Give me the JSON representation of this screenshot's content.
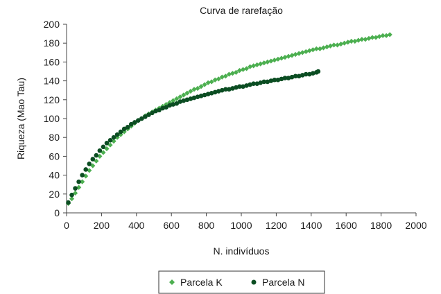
{
  "chart_data": {
    "type": "scatter",
    "title": "Curva de rarefação",
    "xlabel": "N. indivíduos",
    "ylabel": "Riqueza (Mao Tau)",
    "xlim": [
      0,
      2000
    ],
    "ylim": [
      0,
      200
    ],
    "xticks": [
      0,
      200,
      400,
      600,
      800,
      1000,
      1200,
      1400,
      1600,
      1800,
      2000
    ],
    "yticks": [
      0,
      20,
      40,
      60,
      80,
      100,
      120,
      140,
      160,
      180,
      200
    ],
    "grid": false,
    "legend_position": "bottom",
    "series": [
      {
        "name": "Parcela K",
        "marker": "diamond",
        "color": "#4caf50",
        "x": [
          10,
          30,
          50,
          70,
          90,
          110,
          130,
          150,
          170,
          190,
          210,
          230,
          250,
          270,
          290,
          310,
          330,
          350,
          370,
          390,
          410,
          430,
          450,
          470,
          490,
          510,
          530,
          550,
          570,
          590,
          610,
          630,
          650,
          670,
          690,
          710,
          730,
          750,
          770,
          790,
          810,
          830,
          850,
          870,
          890,
          910,
          930,
          950,
          970,
          990,
          1010,
          1030,
          1050,
          1070,
          1090,
          1110,
          1130,
          1150,
          1170,
          1190,
          1210,
          1230,
          1250,
          1270,
          1290,
          1310,
          1330,
          1350,
          1370,
          1390,
          1410,
          1430,
          1450,
          1470,
          1490,
          1510,
          1530,
          1550,
          1570,
          1590,
          1610,
          1630,
          1650,
          1670,
          1690,
          1710,
          1730,
          1750,
          1770,
          1790,
          1810,
          1830,
          1850
        ],
        "y": [
          10,
          15,
          21,
          27,
          33,
          39,
          45,
          50,
          55,
          60,
          64,
          68,
          72,
          76,
          80,
          83,
          86,
          89,
          92,
          95,
          98,
          100,
          103,
          105,
          107,
          109,
          111,
          113,
          115,
          117,
          119,
          121,
          123,
          125,
          127,
          129,
          131,
          132,
          134,
          136,
          138,
          139,
          141,
          142,
          144,
          145,
          147,
          148,
          149,
          151,
          152,
          153,
          155,
          156,
          157,
          158,
          159,
          160,
          161,
          162,
          163,
          164,
          165,
          166,
          167,
          168,
          169,
          170,
          171,
          172,
          173,
          174,
          174,
          175,
          176,
          177,
          178,
          178,
          179,
          180,
          181,
          182,
          182,
          183,
          184,
          184,
          185,
          186,
          186,
          187,
          188,
          188,
          189
        ]
      },
      {
        "name": "Parcela N",
        "marker": "circle",
        "color": "#0b4d22",
        "x": [
          10,
          30,
          50,
          70,
          90,
          110,
          130,
          150,
          170,
          190,
          210,
          230,
          250,
          270,
          290,
          310,
          330,
          350,
          370,
          390,
          410,
          430,
          450,
          470,
          490,
          510,
          530,
          550,
          570,
          590,
          610,
          630,
          650,
          670,
          690,
          710,
          730,
          750,
          770,
          790,
          810,
          830,
          850,
          870,
          890,
          910,
          930,
          950,
          970,
          990,
          1010,
          1030,
          1050,
          1070,
          1090,
          1110,
          1130,
          1150,
          1170,
          1190,
          1210,
          1230,
          1250,
          1270,
          1290,
          1310,
          1330,
          1350,
          1370,
          1390,
          1410,
          1430,
          1440
        ],
        "y": [
          11,
          19,
          26,
          33,
          40,
          46,
          52,
          57,
          61,
          66,
          70,
          74,
          77,
          80,
          83,
          86,
          89,
          91,
          94,
          96,
          98,
          100,
          102,
          104,
          106,
          108,
          109,
          111,
          112,
          114,
          115,
          116,
          118,
          119,
          120,
          121,
          122,
          123,
          124,
          125,
          126,
          127,
          128,
          129,
          130,
          131,
          131,
          132,
          133,
          134,
          134,
          135,
          136,
          137,
          137,
          138,
          139,
          139,
          140,
          141,
          141,
          142,
          143,
          143,
          144,
          145,
          145,
          146,
          147,
          147,
          148,
          149,
          150
        ]
      }
    ]
  }
}
